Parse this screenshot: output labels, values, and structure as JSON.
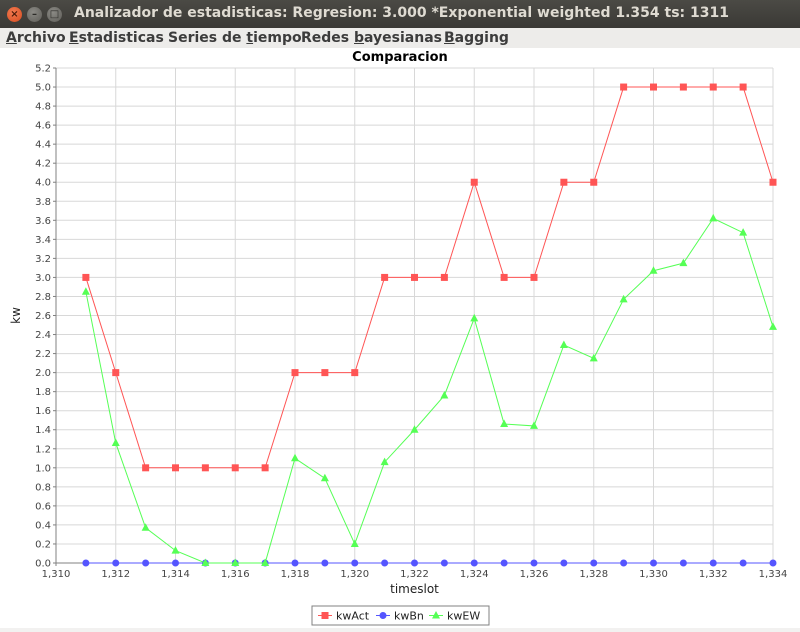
{
  "window": {
    "title": "Analizador de estadisticas: Regresion: 3.000 *Exponential weighted 1.354 ts: 1311",
    "close_glyph": "×",
    "min_glyph": "–",
    "max_glyph": "□"
  },
  "menu": [
    {
      "label": "Archivo",
      "mnemonic_index": 0
    },
    {
      "label": "Estadisticas",
      "mnemonic_index": 0
    },
    {
      "label": "Series de tiempo",
      "mnemonic_index": 10
    },
    {
      "label": "Redes bayesianas",
      "mnemonic_index": 6
    },
    {
      "label": "Bagging",
      "mnemonic_index": 0
    }
  ],
  "chart_data": {
    "type": "line",
    "title": "Comparacion",
    "xlabel": "timeslot",
    "ylabel": "kw",
    "xlim": [
      1310,
      1334
    ],
    "ylim": [
      0,
      5.2
    ],
    "grid": true,
    "legend_position": "bottom",
    "x": [
      1311,
      1312,
      1313,
      1314,
      1315,
      1316,
      1317,
      1318,
      1319,
      1320,
      1321,
      1322,
      1323,
      1324,
      1325,
      1326,
      1327,
      1328,
      1329,
      1330,
      1331,
      1332,
      1333,
      1334
    ],
    "x_ticks": [
      "1,310",
      "1,312",
      "1,314",
      "1,316",
      "1,318",
      "1,320",
      "1,322",
      "1,324",
      "1,326",
      "1,328",
      "1,330",
      "1,332",
      "1,334"
    ],
    "y_ticks": [
      "0.0",
      "0.2",
      "0.4",
      "0.6",
      "0.8",
      "1.0",
      "1.2",
      "1.4",
      "1.6",
      "1.8",
      "2.0",
      "2.2",
      "2.4",
      "2.6",
      "2.8",
      "3.0",
      "3.2",
      "3.4",
      "3.6",
      "3.8",
      "4.0",
      "4.2",
      "4.4",
      "4.6",
      "4.8",
      "5.0",
      "5.2"
    ],
    "series": [
      {
        "name": "kwAct",
        "color": "#ff5555",
        "marker": "square",
        "values": [
          3,
          2,
          1,
          1,
          1,
          1,
          1,
          2,
          2,
          2,
          3,
          3,
          3,
          4,
          3,
          3,
          4,
          4,
          5,
          5,
          5,
          5,
          5,
          4
        ]
      },
      {
        "name": "kwBn",
        "color": "#5555ff",
        "marker": "circle",
        "values": [
          0,
          0,
          0,
          0,
          0,
          0,
          0,
          0,
          0,
          0,
          0,
          0,
          0,
          0,
          0,
          0,
          0,
          0,
          0,
          0,
          0,
          0,
          0,
          0
        ]
      },
      {
        "name": "kwEW",
        "color": "#55ff55",
        "marker": "triangle",
        "values": [
          2.85,
          1.26,
          0.37,
          0.13,
          0,
          0,
          0,
          1.1,
          0.89,
          0.2,
          1.06,
          1.4,
          1.76,
          2.57,
          1.46,
          1.44,
          2.29,
          2.15,
          2.77,
          3.07,
          3.15,
          3.62,
          3.47,
          2.48
        ]
      }
    ]
  }
}
